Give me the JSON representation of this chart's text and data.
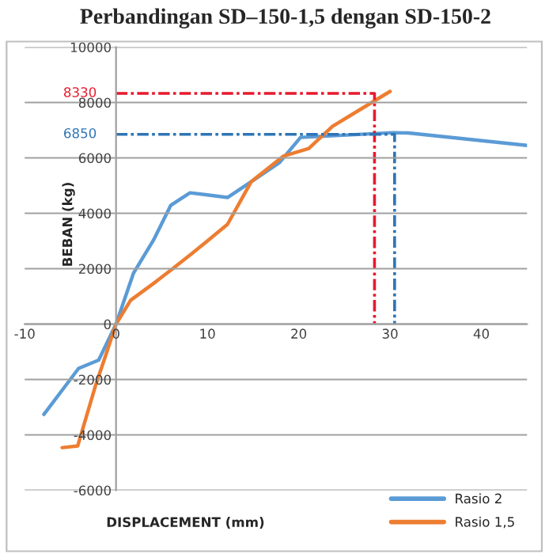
{
  "chart_data": {
    "type": "line",
    "title": "Perbandingan SD–150-1,5 dengan SD-150-2",
    "xlabel": "DISPLACEMENT (mm)",
    "ylabel": "BEBAN (kg)",
    "xlim": [
      -10,
      45
    ],
    "xticks": [
      -10,
      0,
      10,
      20,
      30,
      40
    ],
    "ylim": [
      -6000,
      10000
    ],
    "yticks": [
      -6000,
      -4000,
      -2000,
      0,
      2000,
      4000,
      6000,
      8000,
      10000
    ],
    "grid": "y",
    "legend": "bottom right",
    "line_style": "solid",
    "series": [
      {
        "name": "Rasio 2",
        "color": "#5b9bd5",
        "x": [
          -7.9,
          -5.7,
          -4.1,
          -1.9,
          0,
          1.9,
          4.1,
          6,
          8.1,
          12.2,
          14.8,
          17.9,
          20.2,
          30.3,
          32,
          45
        ],
        "values": [
          -3260,
          -2300,
          -1600,
          -1300,
          0,
          1830,
          3030,
          4290,
          4740,
          4570,
          5140,
          5830,
          6740,
          6910,
          6900,
          6450
        ]
      },
      {
        "name": "Rasio 1,5",
        "color": "#ed7d31",
        "x": [
          -5.9,
          -4.2,
          -2.2,
          -1,
          0,
          1.6,
          4.4,
          6.2,
          8.4,
          10.1,
          12.2,
          14.8,
          18.3,
          21.1,
          23.7,
          26,
          30
        ],
        "values": [
          -4460,
          -4400,
          -2170,
          -1000,
          0,
          860,
          1540,
          2000,
          2570,
          3030,
          3600,
          5140,
          6060,
          6340,
          7140,
          7600,
          8400
        ]
      },
      {
        "type": "line",
        "color": "#e8192c",
        "line_style": "dashed",
        "x": [
          0,
          28.3,
          28.3
        ],
        "values": [
          8330,
          8330,
          0
        ]
      },
      {
        "type": "line",
        "color": "#2e75b6",
        "line_style": "dashed",
        "x": [
          0,
          30.5,
          30.5
        ],
        "values": [
          6850,
          6850,
          0
        ]
      }
    ],
    "annotations": [
      "8330",
      "6850"
    ]
  }
}
